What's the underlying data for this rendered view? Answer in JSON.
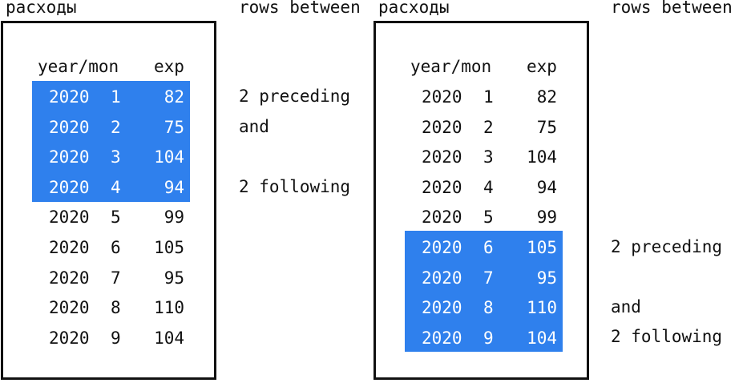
{
  "title_left": "расходы",
  "title_right": "rows between",
  "columns": {
    "year_mon": "year/mon",
    "exp": "exp"
  },
  "highlight_color": "#2f80ed",
  "rows": [
    {
      "year": "2020",
      "mon": "1",
      "exp": "82"
    },
    {
      "year": "2020",
      "mon": "2",
      "exp": "75"
    },
    {
      "year": "2020",
      "mon": "3",
      "exp": "104"
    },
    {
      "year": "2020",
      "mon": "4",
      "exp": "94"
    },
    {
      "year": "2020",
      "mon": "5",
      "exp": "99"
    },
    {
      "year": "2020",
      "mon": "6",
      "exp": "105"
    },
    {
      "year": "2020",
      "mon": "7",
      "exp": "95"
    },
    {
      "year": "2020",
      "mon": "8",
      "exp": "110"
    },
    {
      "year": "2020",
      "mon": "9",
      "exp": "104"
    }
  ],
  "panels": [
    {
      "highlighted_rows": [
        1,
        2,
        3,
        4
      ],
      "notes": [
        "2 preceding",
        "and",
        "2 following"
      ]
    },
    {
      "highlighted_rows": [
        6,
        7,
        8,
        9
      ],
      "notes": [
        "2 preceding",
        "and",
        "2 following"
      ]
    }
  ]
}
